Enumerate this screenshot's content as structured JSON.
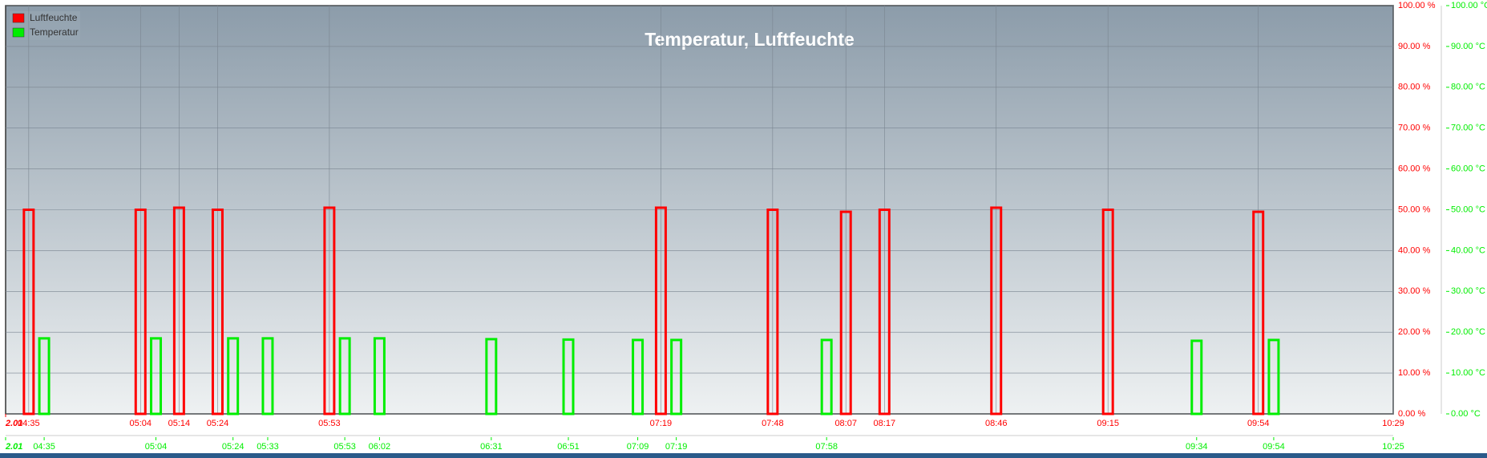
{
  "chart_data": {
    "type": "bar",
    "title": "Temperatur, Luftfeuchte",
    "xlim": [
      "04:29",
      "10:29"
    ],
    "xticks": [
      {
        "value": "04:29",
        "label": "2.01"
      },
      "04:35",
      "05:04",
      "05:14",
      "05:24",
      "05:53",
      "07:19",
      "07:48",
      "08:07",
      "08:17",
      "08:46",
      "09:15",
      "09:54",
      "10:29"
    ],
    "x2lim": [
      "04:25",
      "10:25"
    ],
    "x2ticks": [
      {
        "value": "04:25",
        "label": "2.01"
      },
      "04:35",
      "05:04",
      "05:24",
      "05:33",
      "05:53",
      "06:02",
      "06:31",
      "06:51",
      "07:09",
      "07:19",
      "07:58",
      "09:34",
      "09:54",
      "10:25"
    ],
    "ylim": [
      0,
      100
    ],
    "yticks": [
      {
        "value": 0,
        "label": "0.00 %"
      },
      {
        "value": 10,
        "label": "10.00 %"
      },
      {
        "value": 20,
        "label": "20.00 %"
      },
      {
        "value": 30,
        "label": "30.00 %"
      },
      {
        "value": 40,
        "label": "40.00 %"
      },
      {
        "value": 50,
        "label": "50.00 %"
      },
      {
        "value": 60,
        "label": "60.00 %"
      },
      {
        "value": 70,
        "label": "70.00 %"
      },
      {
        "value": 80,
        "label": "80.00 %"
      },
      {
        "value": 90,
        "label": "90.00 %"
      },
      {
        "value": 100,
        "label": "100.00 %"
      }
    ],
    "y2lim": [
      0,
      100
    ],
    "y2ticks": [
      {
        "value": 0,
        "label": "0.00 °C"
      },
      {
        "value": 10,
        "label": "10.00 °C"
      },
      {
        "value": 20,
        "label": "20.00 °C"
      },
      {
        "value": 30,
        "label": "30.00 °C"
      },
      {
        "value": 40,
        "label": "40.00 °C"
      },
      {
        "value": 50,
        "label": "50.00 °C"
      },
      {
        "value": 60,
        "label": "60.00 °C"
      },
      {
        "value": 70,
        "label": "70.00 °C"
      },
      {
        "value": 80,
        "label": "80.00 °C"
      },
      {
        "value": 90,
        "label": "90.00 °C"
      },
      {
        "value": 100,
        "label": "100.00 °C"
      }
    ],
    "grid": true,
    "series": [
      {
        "name": "Luftfeuchte",
        "color": "#ff0000",
        "axis": "y",
        "x": [
          "04:35",
          "05:04",
          "05:14",
          "05:24",
          "05:53",
          "07:19",
          "07:48",
          "08:07",
          "08:17",
          "08:46",
          "09:15",
          "09:54"
        ],
        "values": [
          50,
          50,
          50.5,
          50,
          50.5,
          50.5,
          50,
          49.5,
          50,
          50.5,
          50,
          49.5
        ]
      },
      {
        "name": "Temperatur",
        "color": "#00ee00",
        "axis": "y2",
        "x": [
          "04:35",
          "05:04",
          "05:24",
          "05:33",
          "05:53",
          "06:02",
          "06:31",
          "06:51",
          "07:09",
          "07:19",
          "07:58",
          "09:34",
          "09:54"
        ],
        "values": [
          18.5,
          18.5,
          18.5,
          18.5,
          18.5,
          18.5,
          18.3,
          18.2,
          18.1,
          18.1,
          18.1,
          17.9,
          18.1
        ]
      }
    ]
  }
}
